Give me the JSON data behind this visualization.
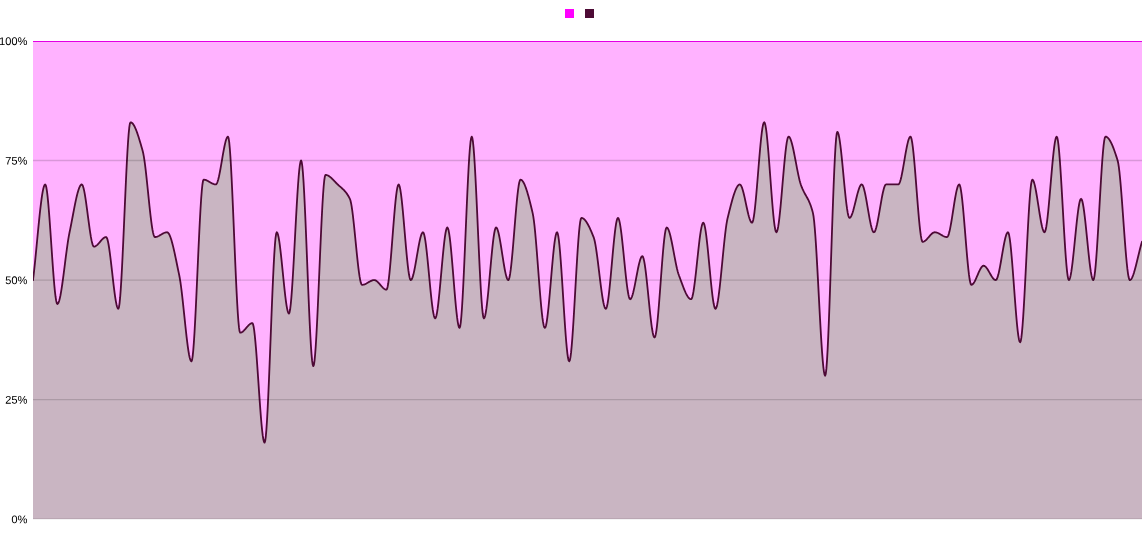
{
  "chart_data": {
    "type": "area",
    "stacked": true,
    "categories": [
      null,
      null,
      null,
      null,
      null,
      null,
      null,
      null,
      null,
      null,
      null,
      null,
      null,
      null,
      null,
      null,
      null,
      null,
      null,
      null,
      null,
      null,
      null,
      null,
      null,
      null,
      null,
      null,
      null,
      null,
      null,
      null,
      null,
      null,
      null,
      null,
      null,
      null,
      null,
      null,
      null,
      null,
      null,
      null,
      null,
      null,
      null,
      null,
      null,
      null,
      null,
      null,
      null,
      null,
      null,
      null,
      null,
      null,
      null,
      null,
      null,
      null,
      null,
      null,
      null,
      null,
      null,
      null,
      null,
      null,
      null,
      null,
      null,
      null,
      null,
      null,
      null,
      null,
      null,
      null,
      null,
      null,
      null,
      null,
      null,
      null,
      null,
      null,
      null,
      null,
      null,
      null
    ],
    "series": [
      {
        "color": "#4d0a35",
        "values": [
          50,
          70,
          45,
          60,
          70,
          57,
          59,
          44,
          83,
          77,
          59,
          60,
          51,
          33,
          71,
          70,
          80,
          39,
          41,
          16,
          60,
          43,
          75,
          32,
          72,
          70,
          67,
          49,
          50,
          48,
          70,
          50,
          60,
          42,
          61,
          40,
          80,
          42,
          61,
          50,
          71,
          64,
          40,
          60,
          33,
          63,
          59,
          44,
          63,
          46,
          55,
          38,
          61,
          51,
          46,
          62,
          44,
          63,
          70,
          62,
          83,
          60,
          80,
          70,
          64,
          30,
          81,
          63,
          70,
          60,
          70,
          70,
          80,
          58,
          60,
          59,
          70,
          49,
          53,
          50,
          60,
          37,
          71,
          60,
          80,
          50,
          67,
          50,
          80,
          75,
          50,
          58
        ]
      },
      {
        "color": "#ff00ff",
        "values": [
          50,
          30,
          55,
          40,
          30,
          43,
          41,
          56,
          17,
          23,
          41,
          40,
          49,
          67,
          29,
          30,
          20,
          61,
          59,
          84,
          40,
          57,
          25,
          68,
          28,
          30,
          33,
          51,
          50,
          52,
          30,
          50,
          40,
          58,
          39,
          60,
          20,
          58,
          39,
          50,
          29,
          36,
          60,
          40,
          67,
          37,
          41,
          56,
          37,
          54,
          45,
          62,
          39,
          49,
          54,
          38,
          56,
          37,
          30,
          38,
          17,
          40,
          20,
          30,
          36,
          70,
          19,
          37,
          30,
          40,
          30,
          30,
          20,
          42,
          40,
          41,
          30,
          51,
          47,
          50,
          40,
          63,
          29,
          40,
          20,
          50,
          33,
          50,
          20,
          25,
          50,
          42
        ]
      }
    ],
    "ylim": [
      0,
      100
    ],
    "yticks": [
      {
        "value": 0,
        "label": "0%"
      },
      {
        "value": 25,
        "label": "25%"
      },
      {
        "value": 50,
        "label": "50%"
      },
      {
        "value": 75,
        "label": "75%"
      },
      {
        "value": 100,
        "label": "100%"
      }
    ],
    "grid": "y",
    "tick_labels": "y"
  }
}
